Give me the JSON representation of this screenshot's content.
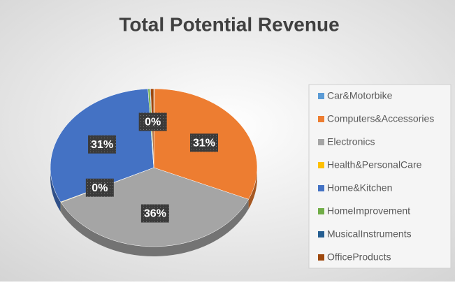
{
  "chart_data": {
    "type": "pie3d",
    "title": "Total Potential Revenue",
    "categories": [
      "Car&Motorbike",
      "Computers&Accessories",
      "Electronics",
      "Health&PersonalCare",
      "Home&Kitchen",
      "HomeImprovement",
      "MusicalInstruments",
      "OfficeProducts"
    ],
    "values": [
      0.1,
      31.4,
      36.1,
      0.1,
      31.2,
      0.3,
      0.1,
      0.49
    ],
    "value_labels": [
      null,
      "31%",
      "36%",
      "0%",
      "31%",
      null,
      null,
      "0%"
    ],
    "colors": [
      "#5b9bd5",
      "#ed7d31",
      "#a5a5a5",
      "#ffc000",
      "#4472c4",
      "#70ad47",
      "#255e91",
      "#9e480e"
    ],
    "legend": "right"
  }
}
